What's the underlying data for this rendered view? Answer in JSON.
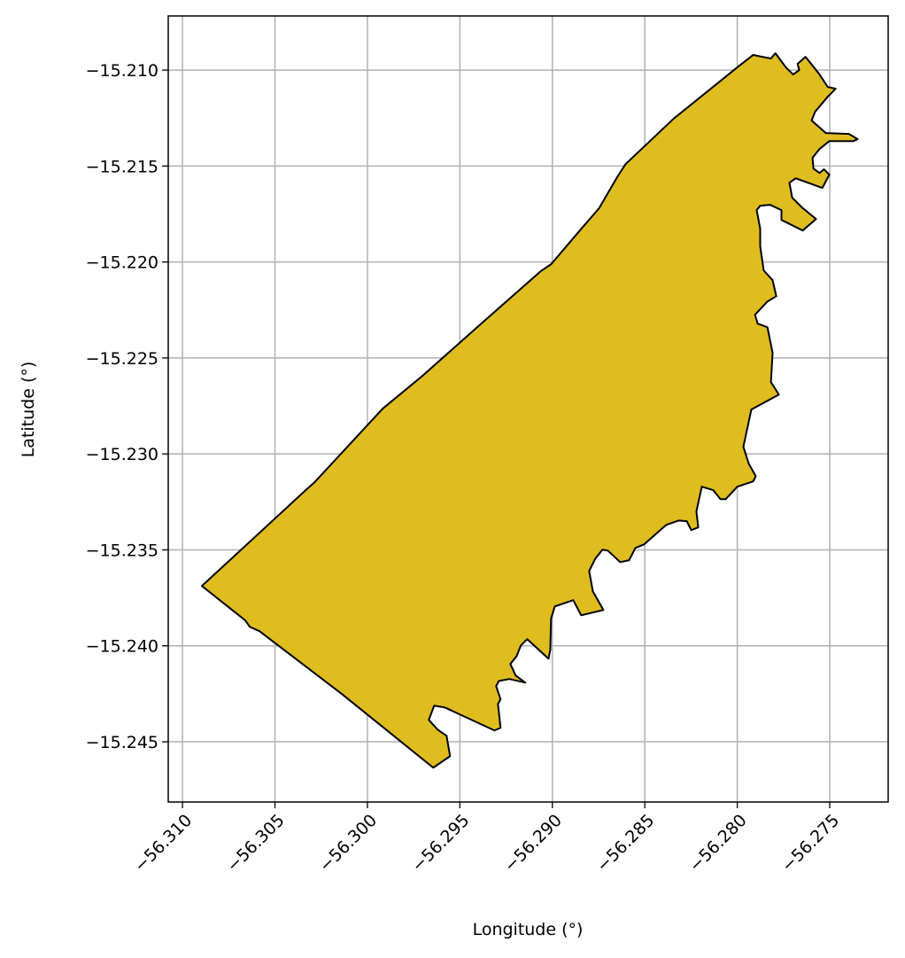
{
  "chart_data": {
    "type": "polygon",
    "xlabel": "Longitude (°)",
    "ylabel": "Latitude (°)",
    "color": "#dfbd1f",
    "edgecolor": "#000000",
    "grid": true,
    "xlim": [
      -56.31077,
      -56.27184
    ],
    "ylim": [
      -15.24814,
      -15.20718
    ],
    "xticks": [
      {
        "value": -56.31,
        "label": "−56.310"
      },
      {
        "value": -56.305,
        "label": "−56.305"
      },
      {
        "value": -56.3,
        "label": "−56.300"
      },
      {
        "value": -56.295,
        "label": "−56.295"
      },
      {
        "value": -56.29,
        "label": "−56.290"
      },
      {
        "value": -56.285,
        "label": "−56.285"
      },
      {
        "value": -56.28,
        "label": "−56.280"
      },
      {
        "value": -56.275,
        "label": "−56.275"
      }
    ],
    "yticks": [
      {
        "value": -15.21,
        "label": "−15.210"
      },
      {
        "value": -15.215,
        "label": "−15.215"
      },
      {
        "value": -15.22,
        "label": "−15.220"
      },
      {
        "value": -15.225,
        "label": "−15.225"
      },
      {
        "value": -15.23,
        "label": "−15.230"
      },
      {
        "value": -15.235,
        "label": "−15.235"
      },
      {
        "value": -15.24,
        "label": "−15.240"
      },
      {
        "value": -15.245,
        "label": "−15.245"
      }
    ],
    "x": [
      -56.30895,
      -56.3066,
      -56.30636,
      -56.30583,
      -56.30137,
      -56.29644,
      -56.29553,
      -56.29572,
      -56.2962,
      -56.29668,
      -56.29639,
      -56.29582,
      -56.29313,
      -56.2928,
      -56.29294,
      -56.2928,
      -56.29304,
      -56.29289,
      -56.29232,
      -56.29146,
      -56.29198,
      -56.29227,
      -56.29193,
      -56.2917,
      -56.29136,
      -56.29021,
      -56.29011,
      -56.29007,
      -56.28987,
      -56.28887,
      -56.28844,
      -56.28724,
      -56.28781,
      -56.28801,
      -56.28767,
      -56.28729,
      -56.287,
      -56.28633,
      -56.28585,
      -56.28551,
      -56.28503,
      -56.28384,
      -56.28316,
      -56.28273,
      -56.28249,
      -56.28211,
      -56.28221,
      -56.28192,
      -56.2813,
      -56.28091,
      -56.28063,
      -56.28,
      -56.27914,
      -56.279,
      -56.27938,
      -56.27967,
      -56.27924,
      -56.27775,
      -56.27818,
      -56.27809,
      -56.27837,
      -56.2789,
      -56.27904,
      -56.27837,
      -56.27789,
      -56.27809,
      -56.27857,
      -56.27876,
      -56.27876,
      -56.27895,
      -56.27876,
      -56.27823,
      -56.27761,
      -56.27761,
      -56.27646,
      -56.27574,
      -56.2765,
      -56.27703,
      -56.27718,
      -56.27684,
      -56.2754,
      -56.27502,
      -56.27531,
      -56.27555,
      -56.27588,
      -56.27593,
      -56.27555,
      -56.27502,
      -56.27372,
      -56.27349,
      -56.27396,
      -56.27521,
      -56.27598,
      -56.27579,
      -56.27511,
      -56.27468,
      -56.27511,
      -56.27555,
      -56.27631,
      -56.27674,
      -56.27665,
      -56.27698,
      -56.27737,
      -56.27794,
      -56.27818,
      -56.27914,
      -56.27995,
      -56.28345,
      -56.28604,
      -56.28647,
      -56.28748,
      -56.28839,
      -56.29007,
      -56.29064,
      -56.29395,
      -56.29697,
      -56.29917,
      -56.30286,
      -56.30334
    ],
    "y": [
      -15.23688,
      -15.23868,
      -15.23901,
      -15.23924,
      -15.24252,
      -15.24635,
      -15.24575,
      -15.24469,
      -15.24437,
      -15.24386,
      -15.24312,
      -15.24321,
      -15.24441,
      -15.24427,
      -15.24303,
      -15.24279,
      -15.2421,
      -15.24183,
      -15.24173,
      -15.24192,
      -15.24155,
      -15.24095,
      -15.24053,
      -15.23998,
      -15.23965,
      -15.24067,
      -15.24021,
      -15.23859,
      -15.23795,
      -15.23762,
      -15.23841,
      -15.23813,
      -15.23716,
      -15.2361,
      -15.23545,
      -15.23499,
      -15.23504,
      -15.23564,
      -15.23554,
      -15.2349,
      -15.23471,
      -15.2337,
      -15.23347,
      -15.23351,
      -15.23397,
      -15.23383,
      -15.233,
      -15.23171,
      -15.23189,
      -15.23236,
      -15.23236,
      -15.23171,
      -15.23143,
      -15.23116,
      -15.23051,
      -15.22963,
      -15.22769,
      -15.22691,
      -15.22626,
      -15.22473,
      -15.2234,
      -15.22321,
      -15.22275,
      -15.22206,
      -15.22178,
      -15.22095,
      -15.22044,
      -15.21919,
      -15.21827,
      -15.2173,
      -15.21707,
      -15.21702,
      -15.2173,
      -15.21781,
      -15.21836,
      -15.21776,
      -15.21716,
      -15.21665,
      -15.21587,
      -15.21564,
      -15.21614,
      -15.21545,
      -15.21517,
      -15.21536,
      -15.21513,
      -15.21457,
      -15.21411,
      -15.2137,
      -15.2137,
      -15.2136,
      -15.21333,
      -15.21328,
      -15.21263,
      -15.21217,
      -15.21139,
      -15.21097,
      -15.21088,
      -15.21023,
      -15.20931,
      -15.20968,
      -15.21,
      -15.21023,
      -15.20986,
      -15.20912,
      -15.2094,
      -15.20921,
      -15.20982,
      -15.21254,
      -15.2149,
      -15.21554,
      -15.21721,
      -15.21822,
      -15.22012,
      -15.22049,
      -15.2233,
      -15.22589,
      -15.22764,
      -15.23148,
      -15.23189
    ]
  }
}
